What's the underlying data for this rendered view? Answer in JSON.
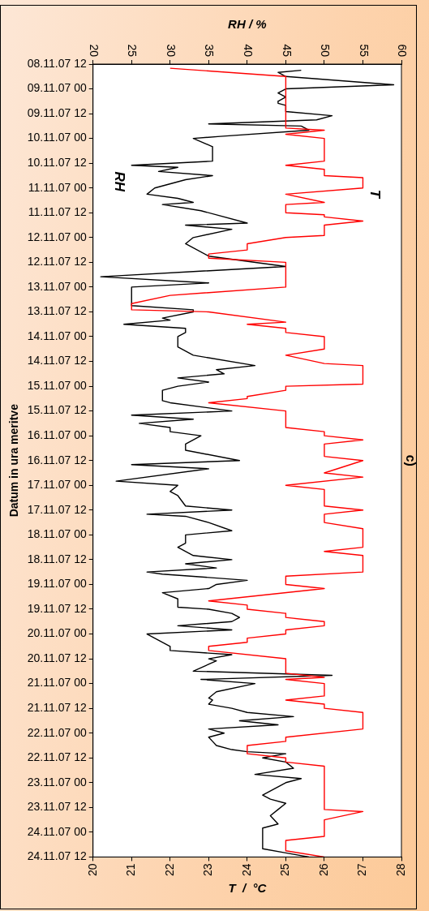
{
  "chart_data": {
    "type": "line",
    "orientation": "horizontal",
    "xlabel": "T  /  °C",
    "x2label": "RH / %",
    "ylabel": "Datum in ura meritve",
    "annotations": [
      "c)"
    ],
    "legend": false,
    "marker": "none",
    "xlim": [
      20,
      28
    ],
    "xticks": [
      20,
      21,
      22,
      23,
      24,
      25,
      26,
      27,
      28
    ],
    "x2lim": [
      20,
      60
    ],
    "x2ticks": [
      20,
      25,
      30,
      35,
      40,
      45,
      50,
      55,
      60
    ],
    "ylim": [
      "--11-24T12:00",
      "--11-08T12:00"
    ],
    "yticks": [
      {
        "value": "--11-08T12:00",
        "label": "08.11.07 12"
      },
      {
        "value": "--11-09T00:00",
        "label": "09.11.07 00"
      },
      {
        "value": "--11-09T12:00",
        "label": "09.11.07 12"
      },
      {
        "value": "--11-10T00:00",
        "label": "10.11.07 00"
      },
      {
        "value": "--11-10T12:00",
        "label": "10.11.07 12"
      },
      {
        "value": "--11-11T00:00",
        "label": "11.11.07 00"
      },
      {
        "value": "--11-11T12:00",
        "label": "11.11.07 12"
      },
      {
        "value": "--11-12T00:00",
        "label": "12.11.07 00"
      },
      {
        "value": "--11-12T12:00",
        "label": "12.11.07 12"
      },
      {
        "value": "--11-13T00:00",
        "label": "13.11.07 00"
      },
      {
        "value": "--11-13T12:00",
        "label": "13.11.07 12"
      },
      {
        "value": "--11-14T00:00",
        "label": "14.11.07 00"
      },
      {
        "value": "--11-14T12:00",
        "label": "14.11.07 12"
      },
      {
        "value": "--11-15T00:00",
        "label": "15.11.07 00"
      },
      {
        "value": "--11-15T12:00",
        "label": "15.11.07 12"
      },
      {
        "value": "--11-16T00:00",
        "label": "16.11.07 00"
      },
      {
        "value": "--11-16T12:00",
        "label": "16.11.07 12"
      },
      {
        "value": "--11-17T00:00",
        "label": "17.11.07 00"
      },
      {
        "value": "--11-17T12:00",
        "label": "17.11.07 12"
      },
      {
        "value": "--11-18T00:00",
        "label": "18.11.07 00"
      },
      {
        "value": "--11-18T12:00",
        "label": "18.11.07 12"
      },
      {
        "value": "--11-19T00:00",
        "label": "19.11.07 00"
      },
      {
        "value": "--11-19T12:00",
        "label": "19.11.07 12"
      },
      {
        "value": "--11-20T00:00",
        "label": "20.11.07 00"
      },
      {
        "value": "--11-20T12:00",
        "label": "20.11.07 12"
      },
      {
        "value": "--11-21T00:00",
        "label": "21.11.07 00"
      },
      {
        "value": "--11-21T12:00",
        "label": "21.11.07 12"
      },
      {
        "value": "--11-22T00:00",
        "label": "22.11.07 00"
      },
      {
        "value": "--11-22T12:00",
        "label": "22.11.07 12"
      },
      {
        "value": "--11-23T00:00",
        "label": "23.11.07 00"
      },
      {
        "value": "--11-23T12:00",
        "label": "23.11.07 12"
      },
      {
        "value": "--11-24T00:00",
        "label": "24.11.07 00"
      },
      {
        "value": "--11-24T12:00",
        "label": "24.11.07 12"
      }
    ],
    "series": [
      {
        "name": "T",
        "color": "#ff0000",
        "x": [
          "--11-08T14:00",
          "--11-08T18:00",
          "--11-09T19:00",
          "--11-09T20:00",
          "--11-09T22:00",
          "--11-10T00:00",
          "--11-10T11:00",
          "--11-10T13:00",
          "--11-10T15:00",
          "--11-10T18:00",
          "--11-10T19:00",
          "--11-11T00:00",
          "--11-11T03:00",
          "--11-11T07:00",
          "--11-11T08:00",
          "--11-11T12:00",
          "--11-11T13:00",
          "--11-11T14:00",
          "--11-11T16:00",
          "--11-11T18:00",
          "--11-11T23:00",
          "--11-12T00:00",
          "--11-12T03:00",
          "--11-12T06:00",
          "--11-12T08:00",
          "--11-12T10:00",
          "--11-12T12:00",
          "--11-13T00:00",
          "--11-13T04:00",
          "--11-13T08:00",
          "--11-13T11:00",
          "--11-13T12:00",
          "--11-13T17:00",
          "--11-13T18:00",
          "--11-13T20:00",
          "--11-13T22:00",
          "--11-14T00:00",
          "--11-14T06:00",
          "--11-14T09:00",
          "--11-14T13:00",
          "--11-14T14:00",
          "--11-14T23:00",
          "--11-15T00:00",
          "--11-15T02:00",
          "--11-15T05:00",
          "--11-15T06:00",
          "--11-15T08:00",
          "--11-15T12:00",
          "--11-15T20:00",
          "--11-15T22:00",
          "--11-16T00:00",
          "--11-16T02:00",
          "--11-16T04:00",
          "--11-16T10:00",
          "--11-16T12:00",
          "--11-16T18:00",
          "--11-16T20:00",
          "--11-17T00:00",
          "--11-17T02:00",
          "--11-17T10:00",
          "--11-17T12:00",
          "--11-17T14:00",
          "--11-17T18:00",
          "--11-17T21:00",
          "--11-18T06:00",
          "--11-18T08:00",
          "--11-18T10:00",
          "--11-18T18:00",
          "--11-18T20:00",
          "--11-19T00:00",
          "--11-19T02:00",
          "--11-19T08:00",
          "--11-19T10:00",
          "--11-19T12:00",
          "--11-19T14:00",
          "--11-19T16:00",
          "--11-19T18:00",
          "--11-19T20:00",
          "--11-19T22:00",
          "--11-20T00:00",
          "--11-20T02:00",
          "--11-20T04:00",
          "--11-20T06:00",
          "--11-20T08:00",
          "--11-20T12:00",
          "--11-20T19:00",
          "--11-20T21:00",
          "--11-20T22:00",
          "--11-21T00:00",
          "--11-21T06:00",
          "--11-21T08:00",
          "--11-21T10:00",
          "--11-21T12:00",
          "--11-21T14:00",
          "--11-21T22:00",
          "--11-22T02:00",
          "--11-22T04:00",
          "--11-22T06:00",
          "--11-22T10:00",
          "--11-22T12:00",
          "--11-22T14:00",
          "--11-22T16:00",
          "--11-23T13:00",
          "--11-23T14:00",
          "--11-23T18:00",
          "--11-24T02:00",
          "--11-24T04:00",
          "--11-24T09:00",
          "--11-24T12:00"
        ],
        "values": [
          22,
          25,
          25,
          26,
          25,
          26,
          26,
          25,
          26,
          26,
          27,
          27,
          25,
          26,
          25,
          25,
          26,
          26,
          27,
          26,
          26,
          25,
          24,
          24,
          23,
          23,
          25,
          25,
          22,
          21,
          21,
          23,
          25,
          24,
          25,
          25,
          26,
          26,
          25,
          26,
          27,
          27,
          25,
          25,
          24,
          24,
          23,
          25,
          25,
          26,
          26,
          27,
          26,
          26,
          27,
          26,
          27,
          25,
          26,
          26,
          27,
          26,
          26,
          27,
          27,
          26,
          27,
          27,
          25,
          25,
          26,
          23,
          24,
          24,
          25,
          25,
          26,
          26,
          25,
          25,
          24,
          24,
          23,
          23,
          25,
          25,
          26,
          25,
          26,
          26,
          25,
          26,
          26,
          27,
          27,
          25,
          25,
          24,
          24,
          25,
          25,
          26,
          26,
          27,
          26,
          26,
          25,
          25,
          26
        ]
      },
      {
        "name": "RH",
        "color": "#000000",
        "axis": "x2",
        "x": [
          "--11-08T15:00",
          "--11-08T16:00",
          "--11-08T18:00",
          "--11-08T22:00",
          "--11-09T00:00",
          "--11-09T02:00",
          "--11-09T04:00",
          "--11-09T06:00",
          "--11-09T07:00",
          "--11-09T08:00",
          "--11-09T11:00",
          "--11-09T13:00",
          "--11-09T15:00",
          "--11-09T17:00",
          "--11-09T18:00",
          "--11-09T20:00",
          "--11-09T23:00",
          "--11-10T00:00",
          "--11-10T04:00",
          "--11-10T11:00",
          "--11-10T13:00",
          "--11-10T14:00",
          "--11-10T16:00",
          "--11-10T18:00",
          "--11-10T20:00",
          "--11-11T00:00",
          "--11-11T03:00",
          "--11-11T05:00",
          "--11-11T07:00",
          "--11-11T08:00",
          "--11-11T11:00",
          "--11-11T17:00",
          "--11-11T18:00",
          "--11-11T20:00",
          "--11-12T00:00",
          "--11-12T03:00",
          "--11-12T09:00",
          "--11-12T14:00",
          "--11-12T19:00",
          "--11-12T22:00",
          "--11-13T00:00",
          "--11-13T09:00",
          "--11-13T11:00",
          "--11-13T12:00",
          "--11-13T15:00",
          "--11-13T16:00",
          "--11-13T18:00",
          "--11-13T20:00",
          "--11-13T22:00",
          "--11-14T00:00",
          "--11-14T05:00",
          "--11-14T09:00",
          "--11-14T14:00",
          "--11-14T16:00",
          "--11-14T18:00",
          "--11-14T20:00",
          "--11-14T22:00",
          "--11-15T00:00",
          "--11-15T02:00",
          "--11-15T07:00",
          "--11-15T08:00",
          "--11-15T12:00",
          "--11-15T14:00",
          "--11-15T16:00",
          "--11-15T18:00",
          "--11-15T20:00",
          "--11-15T22:00",
          "--11-16T00:00",
          "--11-16T04:00",
          "--11-16T07:00",
          "--11-16T12:00",
          "--11-16T14:00",
          "--11-16T16:00",
          "--11-16T22:00",
          "--11-17T00:00",
          "--11-17T03:00",
          "--11-17T05:00",
          "--11-17T10:00",
          "--11-17T12:00",
          "--11-17T14:00",
          "--11-17T15:00",
          "--11-17T18:00",
          "--11-17T22:00",
          "--11-18T00:00",
          "--11-18T04:00",
          "--11-18T06:00",
          "--11-18T10:00",
          "--11-18T12:00",
          "--11-18T14:00",
          "--11-18T16:00",
          "--11-18T18:00",
          "--11-18T19:00",
          "--11-18T22:00",
          "--11-19T00:00",
          "--11-19T02:00",
          "--11-19T04:00",
          "--11-19T07:00",
          "--11-19T11:00",
          "--11-19T12:00",
          "--11-19T14:00",
          "--11-19T16:00",
          "--11-19T18:00",
          "--11-19T20:00",
          "--11-19T22:00",
          "--11-20T00:00",
          "--11-20T06:00",
          "--11-20T08:00",
          "--11-20T10:00",
          "--11-20T12:00",
          "--11-20T13:00",
          "--11-20T18:00",
          "--11-20T20:00",
          "--11-20T22:00",
          "--11-21T00:00",
          "--11-21T04:00",
          "--11-21T07:00",
          "--11-21T08:00",
          "--11-21T10:00",
          "--11-21T12:00",
          "--11-21T14:00",
          "--11-21T16:00",
          "--11-21T18:00",
          "--11-21T20:00",
          "--11-21T22:00",
          "--11-22T00:00",
          "--11-22T02:00",
          "--11-22T04:00",
          "--11-22T06:00",
          "--11-22T08:00",
          "--11-22T09:00",
          "--11-22T10:00",
          "--11-22T12:00",
          "--11-22T14:00",
          "--11-22T17:00",
          "--11-22T20:00",
          "--11-22T22:00",
          "--11-23T00:00",
          "--11-23T06:00",
          "--11-23T08:00",
          "--11-23T10:00",
          "--11-23T13:00",
          "--11-23T16:00",
          "--11-23T20:00",
          "--11-23T22:00",
          "--11-24T08:00",
          "--11-24T10:00",
          "--11-24T12:00"
        ],
        "values": [
          47,
          44,
          45,
          59,
          45,
          44,
          45,
          44,
          44,
          45,
          45,
          51,
          49,
          35,
          47,
          48,
          36.5,
          33,
          35.5,
          35.5,
          25,
          31,
          28.5,
          35.5,
          32,
          28,
          27,
          31,
          33,
          29,
          34,
          40,
          32,
          38,
          33,
          32,
          35,
          45,
          21,
          35,
          25,
          25,
          33,
          33,
          29,
          30,
          24,
          32,
          32,
          31,
          31,
          33,
          41,
          36,
          37,
          31,
          35,
          31,
          29,
          29,
          30,
          38,
          25,
          33,
          26,
          30,
          30,
          34,
          32,
          32,
          39,
          25,
          35,
          23,
          31,
          30,
          31,
          32,
          38,
          27,
          32,
          35,
          38,
          32,
          32,
          31,
          33,
          38,
          32,
          36,
          27,
          29,
          40,
          36,
          35,
          29,
          31,
          31,
          35,
          38,
          39,
          38,
          31,
          38,
          27,
          30,
          30,
          38,
          35,
          36,
          33,
          51,
          34,
          41,
          36,
          35,
          35.5,
          35,
          38,
          40,
          46,
          39,
          44,
          35,
          37,
          35,
          35.5,
          36,
          38,
          40,
          45,
          42,
          45,
          46,
          41,
          47,
          45,
          42,
          43,
          45,
          44,
          43,
          44,
          42,
          42,
          45,
          48
        ]
      }
    ]
  }
}
